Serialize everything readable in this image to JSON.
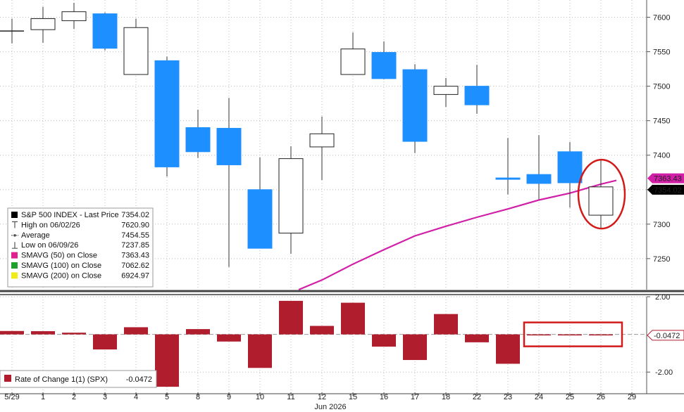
{
  "chart_data": [
    {
      "type": "candlestick",
      "ylim": [
        7205,
        7625
      ],
      "yticks": [
        7250,
        7300,
        7350,
        7400,
        7450,
        7500,
        7550,
        7600
      ],
      "x_labels": [
        "5/29",
        "1",
        "2",
        "3",
        "4",
        "5",
        "8",
        "9",
        "10",
        "11",
        "12",
        "15",
        "16",
        "17",
        "18",
        "22",
        "23",
        "24",
        "25",
        "26",
        "29"
      ],
      "month_label": "Jun 2026",
      "candles": [
        {
          "x": "5/29",
          "open": 7580,
          "high": 7598,
          "low": 7562,
          "close": 7580
        },
        {
          "x": "1",
          "open": 7582,
          "high": 7615,
          "low": 7563,
          "close": 7598
        },
        {
          "x": "2",
          "open": 7595,
          "high": 7620.9,
          "low": 7583,
          "close": 7608
        },
        {
          "x": "3",
          "open": 7605,
          "high": 7607,
          "low": 7552,
          "close": 7555
        },
        {
          "x": "4",
          "open": 7517,
          "high": 7598,
          "low": 7517,
          "close": 7585
        },
        {
          "x": "5",
          "open": 7537,
          "high": 7543,
          "low": 7369,
          "close": 7383
        },
        {
          "x": "8",
          "open": 7440,
          "high": 7466,
          "low": 7396,
          "close": 7405
        },
        {
          "x": "9",
          "open": 7439,
          "high": 7483,
          "low": 7237.85,
          "close": 7386
        },
        {
          "x": "10",
          "open": 7350,
          "high": 7397,
          "low": 7265,
          "close": 7265
        },
        {
          "x": "11",
          "open": 7287,
          "high": 7413,
          "low": 7257,
          "close": 7395
        },
        {
          "x": "12",
          "open": 7412,
          "high": 7456,
          "low": 7364,
          "close": 7431
        },
        {
          "x": "15",
          "open": 7517,
          "high": 7578,
          "low": 7517,
          "close": 7554
        },
        {
          "x": "16",
          "open": 7549,
          "high": 7565,
          "low": 7510,
          "close": 7511
        },
        {
          "x": "17",
          "open": 7524,
          "high": 7532,
          "low": 7403,
          "close": 7420
        },
        {
          "x": "18",
          "open": 7488,
          "high": 7512,
          "low": 7470,
          "close": 7500
        },
        {
          "x": "22",
          "open": 7500,
          "high": 7531,
          "low": 7460,
          "close": 7473
        },
        {
          "x": "23",
          "open": 7367,
          "high": 7425,
          "low": 7343,
          "close": 7365
        },
        {
          "x": "24",
          "open": 7372,
          "high": 7429,
          "low": 7336,
          "close": 7359
        },
        {
          "x": "25",
          "open": 7405,
          "high": 7419,
          "low": 7324,
          "close": 7360
        },
        {
          "x": "26",
          "open": 7313,
          "high": 7393,
          "low": 7294,
          "close": 7354.02
        }
      ],
      "sma50": [
        {
          "x": 9.25,
          "y": 7205
        },
        {
          "x": 10,
          "y": 7219
        },
        {
          "x": 11,
          "y": 7242
        },
        {
          "x": 12,
          "y": 7263
        },
        {
          "x": 13,
          "y": 7283
        },
        {
          "x": 14,
          "y": 7297
        },
        {
          "x": 15,
          "y": 7310
        },
        {
          "x": 16,
          "y": 7322
        },
        {
          "x": 17,
          "y": 7335
        },
        {
          "x": 18,
          "y": 7345
        },
        {
          "x": 19,
          "y": 7358
        },
        {
          "x": 19.5,
          "y": 7363.43
        }
      ],
      "price_tags": [
        {
          "label": "7363.43",
          "value": 7363.43,
          "color": "#d21fa8"
        },
        {
          "label": "7354.02",
          "value": 7354.02,
          "color": "#000000"
        }
      ],
      "legend": [
        {
          "marker": "square",
          "color": "#000000",
          "label": "S&P 500 INDEX - Last Price",
          "value": "7354.02"
        },
        {
          "marker": "high",
          "color": "#555555",
          "label": "High on 06/02/26",
          "value": "7620.90"
        },
        {
          "marker": "avg",
          "color": "#555555",
          "label": "Average",
          "value": "7454.55"
        },
        {
          "marker": "low",
          "color": "#555555",
          "label": "Low on 06/09/26",
          "value": "7237.85"
        },
        {
          "marker": "square",
          "color": "#e0208f",
          "label": "SMAVG (50) on Close",
          "value": "7363.43"
        },
        {
          "marker": "square",
          "color": "#1fa02c",
          "label": "SMAVG (100) on Close",
          "value": "7062.62"
        },
        {
          "marker": "square",
          "color": "#f0ec1a",
          "label": "SMAVG (200) on Close",
          "value": "6924.97"
        }
      ],
      "highlight": "circle around last candle"
    },
    {
      "type": "bar",
      "ylim": [
        -3.0,
        2.0
      ],
      "yticks": [
        2.0,
        -2.0
      ],
      "ytick_labels": [
        "2.00",
        "-2.00"
      ],
      "color": "#b01e2e",
      "values": [
        0.18,
        0.17,
        0.09,
        -0.8,
        0.38,
        -2.78,
        0.28,
        -0.38,
        -1.78,
        1.78,
        0.45,
        1.68,
        -0.65,
        -1.36,
        1.08,
        -0.42,
        -1.56,
        -0.05,
        -0.05,
        -0.0472
      ],
      "last_value_label": "-0.0472",
      "legend": {
        "label": "Rate of Change 1(1) (SPX)",
        "value": "-0.0472",
        "color": "#b01e2e"
      },
      "highlight": "rectangle around last three bars"
    }
  ]
}
